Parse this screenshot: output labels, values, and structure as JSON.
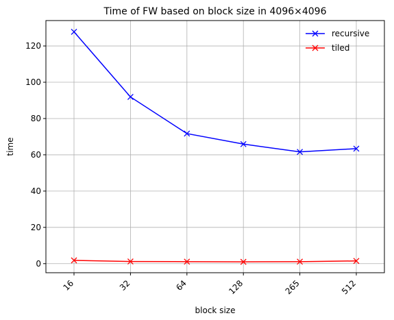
{
  "chart_data": {
    "type": "line",
    "title": "Time of FW based on block size in 4096×4096",
    "xlabel": "block size",
    "ylabel": "time",
    "categories": [
      "16",
      "32",
      "64",
      "128",
      "265",
      "512"
    ],
    "ylim": [
      -5,
      134
    ],
    "yticks": [
      0,
      20,
      40,
      60,
      80,
      100,
      120
    ],
    "grid": true,
    "legend_position": "top-right",
    "series": [
      {
        "name": "recursive",
        "color": "#0000ff",
        "marker": "x",
        "values": [
          127.8,
          91.9,
          71.7,
          65.9,
          61.6,
          63.4
        ]
      },
      {
        "name": "tiled",
        "color": "#ff0000",
        "marker": "x",
        "values": [
          1.8,
          1.2,
          1.1,
          1.0,
          1.1,
          1.5
        ]
      }
    ]
  }
}
